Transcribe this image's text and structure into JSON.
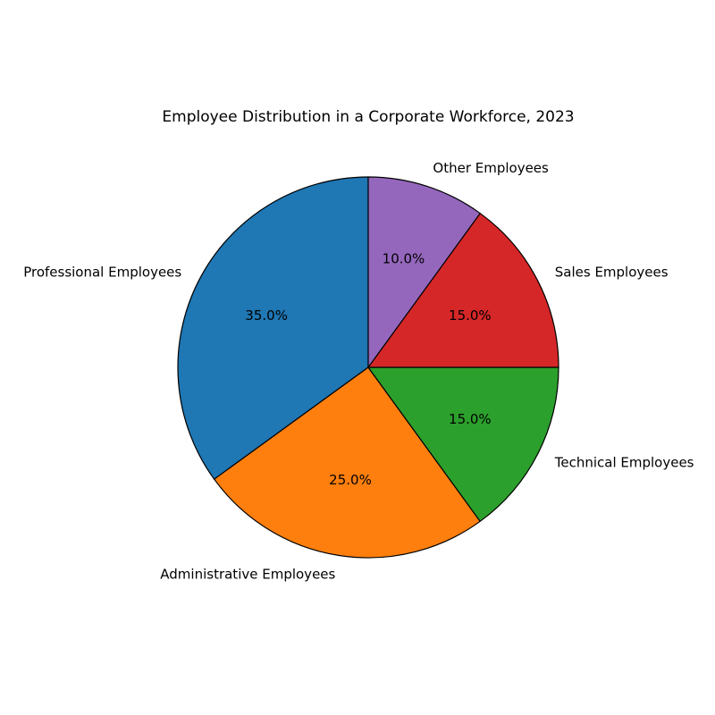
{
  "chart_data": {
    "type": "pie",
    "title": "Employee Distribution in a Corporate Workforce, 2023",
    "start_angle_deg": 90,
    "direction": "counterclockwise",
    "slices": [
      {
        "label": "Professional Employees",
        "value": 35,
        "pct_label": "35.0%",
        "color": "#1f77b4"
      },
      {
        "label": "Administrative Employees",
        "value": 25,
        "pct_label": "25.0%",
        "color": "#ff7f0e"
      },
      {
        "label": "Technical Employees",
        "value": 15,
        "pct_label": "15.0%",
        "color": "#2ca02c"
      },
      {
        "label": "Sales Employees",
        "value": 15,
        "pct_label": "15.0%",
        "color": "#d62728"
      },
      {
        "label": "Other Employees",
        "value": 10,
        "pct_label": "10.0%",
        "color": "#9467bd"
      }
    ],
    "edge_color": "#000000"
  }
}
